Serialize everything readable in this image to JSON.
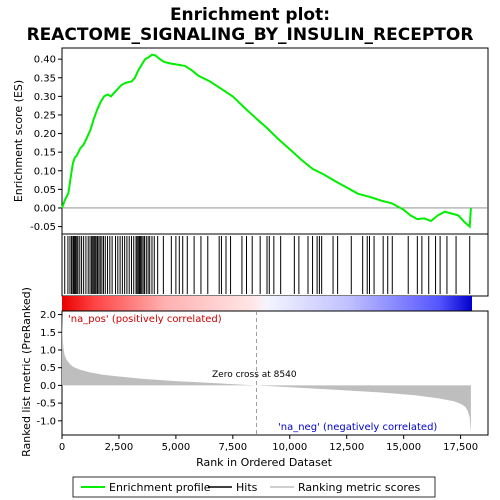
{
  "title_line1": "Enrichment plot:",
  "title_line2": "REACTOME_SIGNALING_BY_INSULIN_RECEPTOR",
  "colors": {
    "enrichment_line": "#00ee00",
    "hits": "#000000",
    "metric_fill": "#bebebe",
    "positive_text": "#cc0000",
    "negative_text": "#0000cc",
    "ramp_red": "#ff0000",
    "ramp_blue": "#0000ff"
  },
  "chart_data": [
    {
      "type": "line",
      "panel": "enrichment-profile",
      "ylabel": "Enrichment score (ES)",
      "xlim": [
        0,
        18000
      ],
      "ylim": [
        -0.07,
        0.43
      ],
      "y_ticks": [
        "-0.05",
        "0.00",
        "0.05",
        "0.10",
        "0.15",
        "0.20",
        "0.25",
        "0.30",
        "0.35",
        "0.40"
      ],
      "y_tick_values": [
        -0.05,
        0,
        0.05,
        0.1,
        0.15,
        0.2,
        0.25,
        0.3,
        0.35,
        0.4
      ],
      "series": [
        {
          "name": "Enrichment profile",
          "x": [
            0,
            120,
            280,
            400,
            480,
            560,
            640,
            800,
            950,
            1100,
            1250,
            1400,
            1550,
            1700,
            1850,
            2000,
            2150,
            2300,
            2450,
            2600,
            2750,
            2900,
            3050,
            3200,
            3350,
            3500,
            3650,
            3800,
            3950,
            4100,
            4300,
            4500,
            4800,
            5100,
            5400,
            5700,
            6000,
            6500,
            7000,
            7500,
            8000,
            8540,
            9000,
            9500,
            10000,
            10500,
            11000,
            11500,
            12000,
            12500,
            13000,
            13500,
            14000,
            14500,
            15000,
            15300,
            15600,
            15900,
            16200,
            16500,
            16800,
            17100,
            17400,
            17700,
            17900,
            17950
          ],
          "y": [
            0.0,
            0.02,
            0.04,
            0.09,
            0.12,
            0.135,
            0.14,
            0.16,
            0.17,
            0.19,
            0.21,
            0.24,
            0.265,
            0.285,
            0.3,
            0.305,
            0.3,
            0.31,
            0.32,
            0.33,
            0.335,
            0.338,
            0.34,
            0.35,
            0.37,
            0.385,
            0.4,
            0.405,
            0.412,
            0.41,
            0.4,
            0.392,
            0.388,
            0.385,
            0.382,
            0.37,
            0.355,
            0.34,
            0.32,
            0.3,
            0.27,
            0.24,
            0.215,
            0.185,
            0.158,
            0.13,
            0.105,
            0.09,
            0.072,
            0.055,
            0.038,
            0.03,
            0.02,
            0.012,
            -0.005,
            -0.02,
            -0.03,
            -0.028,
            -0.035,
            -0.02,
            -0.01,
            -0.015,
            -0.02,
            -0.04,
            -0.05,
            0.0
          ]
        }
      ],
      "hits_x": [
        120,
        260,
        350,
        420,
        480,
        520,
        560,
        600,
        650,
        700,
        780,
        860,
        950,
        1050,
        1150,
        1230,
        1300,
        1350,
        1400,
        1450,
        1500,
        1560,
        1620,
        1680,
        1750,
        1820,
        1900,
        2000,
        2100,
        2200,
        2350,
        2450,
        2550,
        2650,
        2750,
        2850,
        2950,
        3050,
        3150,
        3250,
        3300,
        3350,
        3400,
        3450,
        3500,
        3560,
        3620,
        3700,
        3780,
        3850,
        3950,
        4050,
        4200,
        4450,
        4800,
        5000,
        5150,
        5300,
        5500,
        5800,
        6100,
        6400,
        6900,
        7000,
        7200,
        7400,
        7900,
        8100,
        8350,
        8700,
        9000,
        9100,
        9300,
        9600,
        10200,
        10400,
        10800,
        11000,
        11200,
        11300,
        11400,
        11900,
        12100,
        12700,
        13200,
        13400,
        13500,
        13700,
        14100,
        14300,
        14500,
        15200,
        15600,
        15800,
        16100,
        16400,
        16600,
        16900,
        17300,
        17900
      ]
    },
    {
      "type": "area",
      "panel": "ranked-metric",
      "ylabel": "Ranked list metric (PreRanked)",
      "xlabel": "Rank in Ordered Dataset",
      "xlim": [
        0,
        18000
      ],
      "ylim": [
        -1.4,
        2.1
      ],
      "x_ticks": [
        "0",
        "2,500",
        "5,000",
        "7,500",
        "10,000",
        "12,500",
        "15,000",
        "17,500"
      ],
      "x_tick_values": [
        0,
        2500,
        5000,
        7500,
        10000,
        12500,
        15000,
        17500
      ],
      "y_ticks": [
        "-1.0",
        "-0.5",
        "0.0",
        "0.5",
        "1.0",
        "1.5",
        "2.0"
      ],
      "y_tick_values": [
        -1.0,
        -0.5,
        0.0,
        0.5,
        1.0,
        1.5,
        2.0
      ],
      "series": [
        {
          "name": "Ranking metric scores",
          "x": [
            0,
            20,
            60,
            120,
            200,
            350,
            500,
            800,
            1200,
            1800,
            2500,
            3500,
            5000,
            6500,
            8540,
            10000,
            12000,
            14000,
            15500,
            16500,
            17200,
            17500,
            17700,
            17800,
            17900,
            17950
          ],
          "y": [
            2.0,
            1.45,
            1.05,
            0.85,
            0.72,
            0.6,
            0.52,
            0.44,
            0.37,
            0.3,
            0.25,
            0.19,
            0.12,
            0.07,
            0.0,
            -0.05,
            -0.12,
            -0.2,
            -0.28,
            -0.36,
            -0.45,
            -0.52,
            -0.6,
            -0.7,
            -0.9,
            -1.35
          ]
        }
      ],
      "zero_cross": 8540,
      "annotations": {
        "pos": "'na_pos' (positively correlated)",
        "neg": "'na_neg' (negatively correlated)",
        "zero": "Zero cross at 8540"
      }
    }
  ],
  "legend": {
    "enrichment_profile": "Enrichment profile",
    "hits": "Hits",
    "ranking_metric": "Ranking metric scores"
  }
}
